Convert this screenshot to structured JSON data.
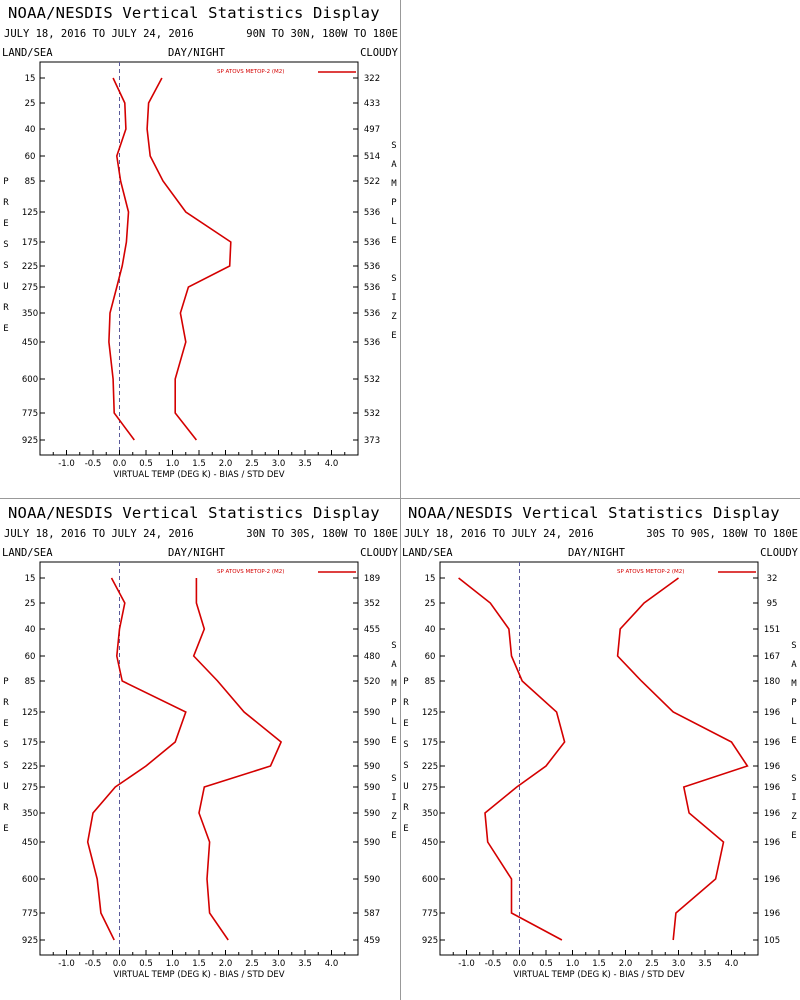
{
  "chart_data": [
    {
      "type": "line",
      "title": "NOAA/NESDIS Vertical Statistics Display",
      "date_range": "JULY 18, 2016 TO JULY 24, 2016",
      "region": "90N TO 30N, 180W TO 180E",
      "surface": "LAND/SEA",
      "time": "DAY/NIGHT",
      "sky": "CLOUDY",
      "legend": "SP ATOVS METOP-2 (M2)",
      "xlabel": "VIRTUAL TEMP (DEG K) - BIAS / STD DEV",
      "ylabel": "PRESSURE",
      "y2label": "SAMPLE SIZE",
      "xlim": [
        -1.5,
        4.5
      ],
      "xticks": [
        "-1.0",
        "-0.5",
        "0.0",
        "0.5",
        "1.0",
        "1.5",
        "2.0",
        "2.5",
        "3.0",
        "3.5",
        "4.0"
      ],
      "levels": [
        "15",
        "25",
        "40",
        "60",
        "85",
        "125",
        "175",
        "225",
        "275",
        "350",
        "450",
        "600",
        "775",
        "925"
      ],
      "sample_size": [
        "322",
        "433",
        "497",
        "514",
        "522",
        "536",
        "536",
        "536",
        "536",
        "536",
        "536",
        "532",
        "532",
        "373"
      ],
      "series": [
        {
          "values": [
            -0.12,
            0.1,
            0.12,
            -0.05,
            0.02,
            0.17,
            0.13,
            0.05,
            -0.05,
            -0.18,
            -0.2,
            -0.12,
            -0.1,
            0.28
          ]
        },
        {
          "values": [
            0.8,
            0.55,
            0.52,
            0.58,
            0.82,
            1.25,
            2.1,
            2.08,
            1.3,
            1.15,
            1.25,
            1.05,
            1.05,
            1.45
          ]
        }
      ]
    },
    {
      "type": "line",
      "title": "NOAA/NESDIS Vertical Statistics Display",
      "date_range": "JULY 18, 2016 TO JULY 24, 2016",
      "region": "30N TO 30S, 180W TO 180E",
      "surface": "LAND/SEA",
      "time": "DAY/NIGHT",
      "sky": "CLOUDY",
      "legend": "SP ATOVS METOP-2 (M2)",
      "xlabel": "VIRTUAL TEMP (DEG K) - BIAS / STD DEV",
      "ylabel": "PRESSURE",
      "y2label": "SAMPLE SIZE",
      "xlim": [
        -1.5,
        4.5
      ],
      "xticks": [
        "-1.0",
        "-0.5",
        "0.0",
        "0.5",
        "1.0",
        "1.5",
        "2.0",
        "2.5",
        "3.0",
        "3.5",
        "4.0"
      ],
      "levels": [
        "15",
        "25",
        "40",
        "60",
        "85",
        "125",
        "175",
        "225",
        "275",
        "350",
        "450",
        "600",
        "775",
        "925"
      ],
      "sample_size": [
        "189",
        "352",
        "455",
        "480",
        "520",
        "590",
        "590",
        "590",
        "590",
        "590",
        "590",
        "590",
        "587",
        "459"
      ],
      "series": [
        {
          "values": [
            -0.15,
            0.1,
            0.0,
            -0.05,
            0.05,
            1.25,
            1.05,
            0.5,
            -0.08,
            -0.5,
            -0.6,
            -0.42,
            -0.35,
            -0.1
          ]
        },
        {
          "values": [
            1.45,
            1.45,
            1.6,
            1.4,
            1.85,
            2.35,
            3.05,
            2.85,
            1.6,
            1.5,
            1.7,
            1.65,
            1.7,
            2.05
          ]
        }
      ]
    },
    {
      "type": "line",
      "title": "NOAA/NESDIS Vertical Statistics Display",
      "date_range": "JULY 18, 2016 TO JULY 24, 2016",
      "region": "30S TO 90S, 180W TO 180E",
      "surface": "LAND/SEA",
      "time": "DAY/NIGHT",
      "sky": "CLOUDY",
      "legend": "SP ATOVS METOP-2 (M2)",
      "xlabel": "VIRTUAL TEMP (DEG K) - BIAS / STD DEV",
      "ylabel": "PRESSURE",
      "y2label": "SAMPLE SIZE",
      "xlim": [
        -1.5,
        4.5
      ],
      "xticks": [
        "-1.0",
        "-0.5",
        "0.0",
        "0.5",
        "1.0",
        "1.5",
        "2.0",
        "2.5",
        "3.0",
        "3.5",
        "4.0"
      ],
      "levels": [
        "15",
        "25",
        "40",
        "60",
        "85",
        "125",
        "175",
        "225",
        "275",
        "350",
        "450",
        "600",
        "775",
        "925"
      ],
      "sample_size": [
        "32",
        "95",
        "151",
        "167",
        "180",
        "196",
        "196",
        "196",
        "196",
        "196",
        "196",
        "196",
        "196",
        "105"
      ],
      "series": [
        {
          "values": [
            -1.15,
            -0.55,
            -0.2,
            -0.15,
            0.05,
            0.7,
            0.85,
            0.5,
            -0.05,
            -0.65,
            -0.6,
            -0.15,
            -0.15,
            0.8
          ]
        },
        {
          "values": [
            3.0,
            2.35,
            1.9,
            1.85,
            2.3,
            2.9,
            4.0,
            4.3,
            3.1,
            3.2,
            3.85,
            3.7,
            2.95,
            2.9
          ]
        }
      ]
    }
  ]
}
